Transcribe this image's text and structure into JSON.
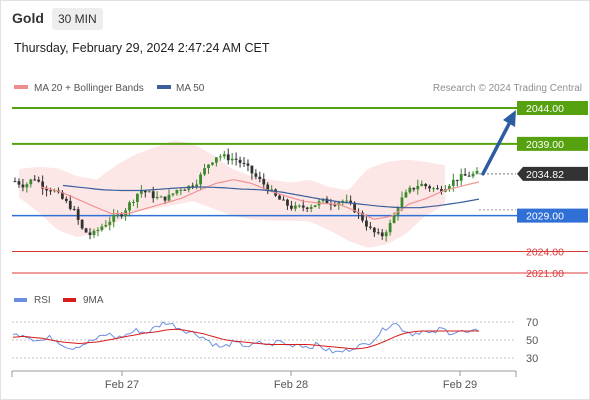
{
  "header": {
    "title": "Gold",
    "timeframe": "30 MIN",
    "datetime": "Thursday, February 29, 2024 2:47:24 AM CET"
  },
  "credit": "Research © 2024 Trading Central",
  "colors": {
    "resistance": "#56a10f",
    "pivot": "#2f6fd6",
    "support": "#dc3a3a",
    "candle_up": "#3b8a2e",
    "candle_down": "#333333",
    "bollinger_fill": "#fde3e3",
    "ma20": "#f19393",
    "ma50": "#3a5f9c",
    "current_price_box": "#333333",
    "arrow": "#2c5da3",
    "rsi": "#6b8fe0",
    "rsi_ma": "#d81b1b"
  },
  "chart_data": [
    {
      "type": "candlestick",
      "title": "Gold",
      "timeframe": "30 MIN",
      "legend": [
        "MA 20 + Bollinger Bands",
        "MA 50"
      ],
      "x_ticks": [
        "Feb 27",
        "Feb 28",
        "Feb 29"
      ],
      "ylim": [
        2019,
        2047
      ],
      "current_price": "2034.82",
      "levels": [
        {
          "label": "2044.00",
          "value": 2044.0,
          "kind": "resistance"
        },
        {
          "label": "2039.00",
          "value": 2039.0,
          "kind": "resistance"
        },
        {
          "label": "2029.00",
          "value": 2029.0,
          "kind": "pivot"
        },
        {
          "label": "2024.00",
          "value": 2024.0,
          "kind": "support"
        },
        {
          "label": "2021.00",
          "value": 2021.0,
          "kind": "support"
        }
      ],
      "close_path": [
        2033.8,
        2033.2,
        2034.3,
        2033.0,
        2032.5,
        2031.2,
        2030.0,
        2027.0,
        2026.2,
        2027.5,
        2028.5,
        2029.2,
        2030.8,
        2032.6,
        2032.0,
        2031.3,
        2031.6,
        2032.8,
        2033.0,
        2033.9,
        2036.1,
        2037.4,
        2037.1,
        2036.8,
        2035.8,
        2034.4,
        2033.2,
        2031.7,
        2030.7,
        2030.0,
        2030.2,
        2030.5,
        2031.0,
        2030.8,
        2031.1,
        2030.3,
        2028.7,
        2026.9,
        2026.0,
        2027.8,
        2031.0,
        2032.5,
        2033.4,
        2033.0,
        2032.5,
        2033.4,
        2034.2,
        2034.6,
        2034.82
      ],
      "ma20_path": [
        2033.0,
        2032.4,
        2031.4,
        2030.3,
        2029.3,
        2029.3,
        2030.0,
        2030.7,
        2031.4,
        2032.5,
        2033.5,
        2034.0,
        2033.5,
        2032.5,
        2031.7,
        2031.0,
        2030.7,
        2030.6,
        2029.6,
        2028.5,
        2028.9,
        2030.6,
        2031.4,
        2032.5,
        2033.1,
        2033.7
      ],
      "ma50_path": [
        2033.2,
        2032.9,
        2032.6,
        2032.5,
        2032.5,
        2032.7,
        2032.9,
        2033.0,
        2032.9,
        2032.7,
        2032.6,
        2032.3,
        2031.8,
        2031.3,
        2030.9,
        2030.6,
        2030.3,
        2030.1,
        2030.1,
        2030.4,
        2030.8,
        2031.3
      ],
      "bb_upper_path": [
        2035.5,
        2035.8,
        2035.6,
        2034.5,
        2034.0,
        2036.0,
        2037.5,
        2038.5,
        2039.5,
        2039.0,
        2037.5,
        2035.5,
        2034.5,
        2034.0,
        2033.6,
        2034.0,
        2033.0,
        2032.5,
        2035.5,
        2036.5,
        2036.8,
        2036.5,
        2036.0
      ],
      "bb_lower_path": [
        2031.5,
        2029.5,
        2027.0,
        2026.0,
        2026.5,
        2028.0,
        2029.5,
        2030.0,
        2030.5,
        2031.0,
        2030.0,
        2029.0,
        2028.5,
        2028.3,
        2028.3,
        2028.2,
        2027.0,
        2025.5,
        2024.5,
        2025.0,
        2026.5,
        2029.0,
        2030.5
      ]
    },
    {
      "type": "line",
      "title": "RSI",
      "legend": [
        "RSI",
        "9MA"
      ],
      "y_ticks": [
        70,
        50,
        30
      ],
      "ylim": [
        20,
        80
      ],
      "series": [
        {
          "name": "RSI",
          "values": [
            55,
            57,
            52,
            49,
            53,
            47,
            41,
            44,
            48,
            52,
            57,
            52,
            56,
            61,
            58,
            64,
            70,
            66,
            61,
            58,
            53,
            46,
            41,
            47,
            45,
            43,
            47,
            44,
            49,
            44,
            46,
            42,
            45,
            39,
            36,
            38,
            43,
            44,
            52,
            62,
            70,
            62,
            57,
            60,
            56,
            63,
            58,
            60,
            57,
            61
          ]
        },
        {
          "name": "9MA",
          "values": [
            53,
            54,
            53,
            52,
            50,
            48,
            47,
            46,
            47,
            48,
            50,
            52,
            54,
            56,
            58,
            59,
            61,
            62,
            61,
            59,
            57,
            54,
            51,
            49,
            48,
            47,
            46,
            45,
            45,
            45,
            45,
            45,
            44,
            43,
            42,
            41,
            40,
            41,
            44,
            48,
            53,
            57,
            59,
            60,
            60,
            60,
            60,
            60,
            60,
            60
          ]
        }
      ]
    }
  ]
}
